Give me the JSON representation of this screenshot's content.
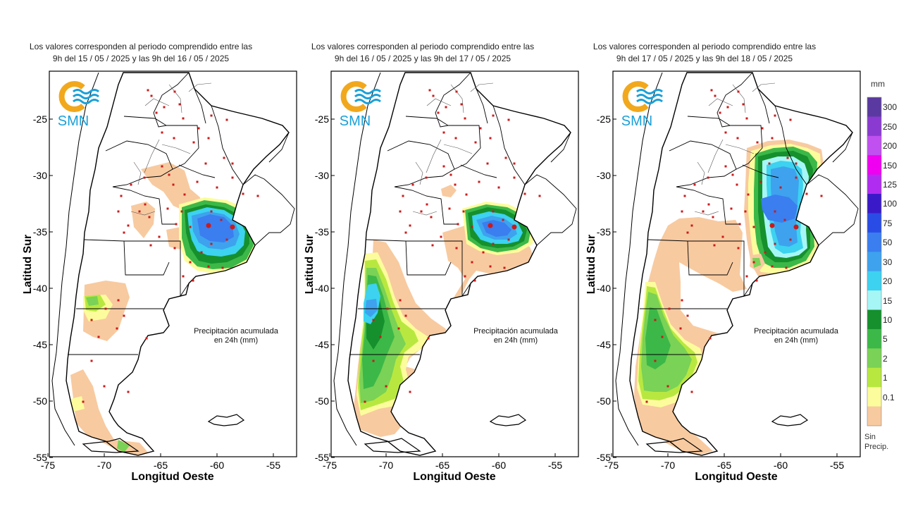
{
  "panels": [
    {
      "title_line1": "Los valores corresponden al periodo comprendido entre las",
      "title_line2": "9h del 15 / 05 / 2025  y las 9h del 16 / 05 / 2025"
    },
    {
      "title_line1": "Los valores corresponden al periodo comprendido entre las",
      "title_line2": "9h del 16 / 05 / 2025  y las 9h del 17 / 05 / 2025"
    },
    {
      "title_line1": "Los valores corresponden al periodo comprendido entre las",
      "title_line2": "9h del 17 / 05 / 2025  y las 9h del 18 / 05 / 2025"
    }
  ],
  "logo_text": "SMN",
  "note_line1": "Precipitación acumulada",
  "note_line2": "en 24h (mm)",
  "axis": {
    "xlabel": "Longitud Oeste",
    "ylabel": "Latitud Sur",
    "x_ticks": [
      "-75",
      "-70",
      "-65",
      "-60",
      "-55"
    ],
    "y_ticks": [
      "-25",
      "-30",
      "-35",
      "-40",
      "-45",
      "-50",
      "-55"
    ]
  },
  "legend": {
    "unit": "mm",
    "labels": [
      "300",
      "250",
      "200",
      "150",
      "125",
      "100",
      "75",
      "50",
      "30",
      "20",
      "15",
      "10",
      "5",
      "2",
      "1",
      "0.1"
    ],
    "colors": [
      "#5a3aa0",
      "#8a3ad0",
      "#c050f0",
      "#f000f0",
      "#b02cf0",
      "#3a1ac8",
      "#2a4ce6",
      "#3a7ef0",
      "#3ea2ee",
      "#3cd2f0",
      "#a6f6f6",
      "#15902c",
      "#3cb848",
      "#7ad256",
      "#b8e840",
      "#fcfc9c",
      "#f8caa0"
    ],
    "sin_precip_line1": "Sin",
    "sin_precip_line2": "Precip."
  },
  "map_colors": {
    "rain_0_1": "#f8caa0",
    "rain_1": "#fcfc9c",
    "rain_2": "#b8e840",
    "rain_5": "#7ad256",
    "rain_10": "#3cb848",
    "rain_15": "#15902c",
    "rain_20": "#a6f6f6",
    "rain_30": "#3cd2f0",
    "rain_50": "#3ea2ee",
    "rain_75": "#3a7ef0",
    "rain_100": "#2a4ce6",
    "station": "#cc1a1a",
    "logo_orange": "#f2a81c",
    "logo_blue": "#1aa0d8"
  }
}
